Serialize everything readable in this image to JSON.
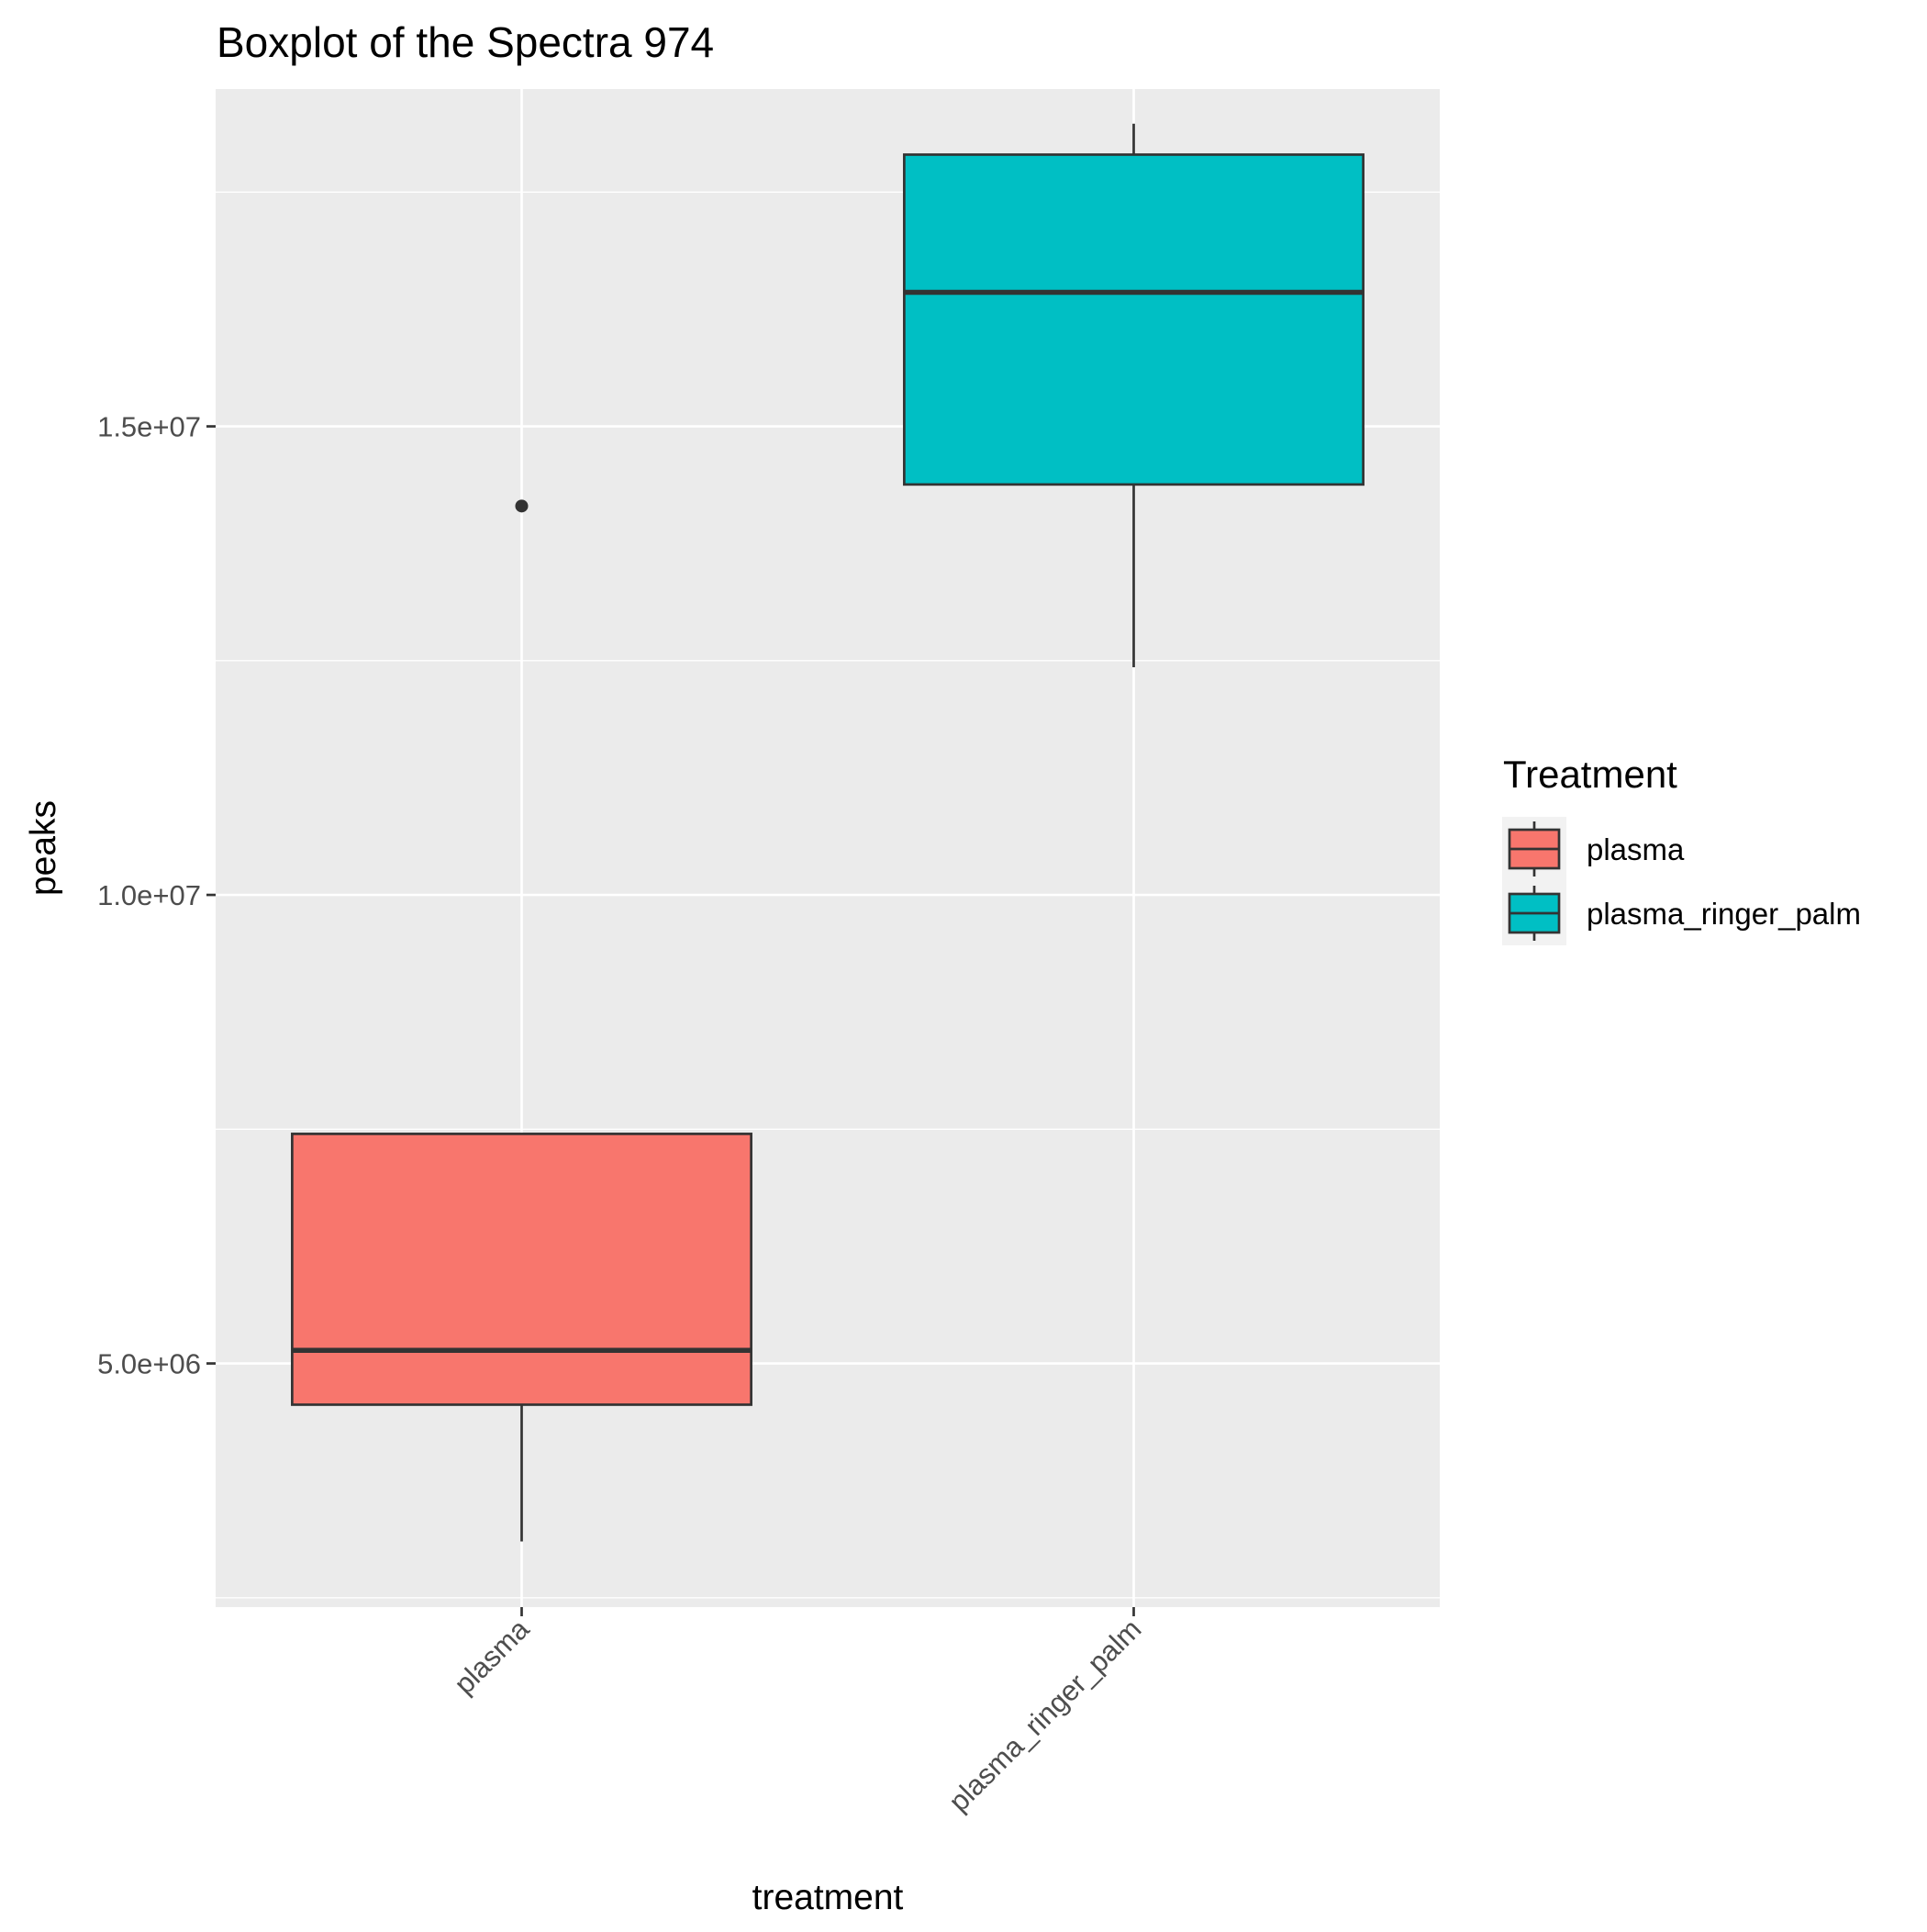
{
  "chart_data": {
    "type": "boxplot",
    "title": "Boxplot of the Spectra 974",
    "xlabel": "treatment",
    "ylabel": "peaks",
    "categories": [
      "plasma",
      "plasma_ringer_palm"
    ],
    "ylim": [
      2400000,
      18600000
    ],
    "y_ticks": [
      5000000,
      10000000,
      15000000
    ],
    "y_tick_labels": [
      "5.0e+06",
      "1.0e+07",
      "1.5e+07"
    ],
    "grid": true,
    "legend": {
      "title": "Treatment",
      "position": "right",
      "entries": [
        "plasma",
        "plasma_ringer_palm"
      ]
    },
    "series": [
      {
        "name": "plasma",
        "color": "#F8766D",
        "whisker_low": 3100000,
        "q1": 4560000,
        "median": 5140000,
        "q3": 7450000,
        "whisker_high": 7450000,
        "outliers": [
          14150000
        ]
      },
      {
        "name": "plasma_ringer_palm",
        "color": "#00BFC4",
        "whisker_low": 12430000,
        "q1": 14380000,
        "median": 16430000,
        "q3": 17900000,
        "whisker_high": 18230000,
        "outliers": []
      }
    ]
  },
  "colors": {
    "panel_background": "#EBEBEB",
    "grid_major": "#FFFFFF",
    "box_outline": "#333333",
    "tick_mark": "#333333"
  }
}
